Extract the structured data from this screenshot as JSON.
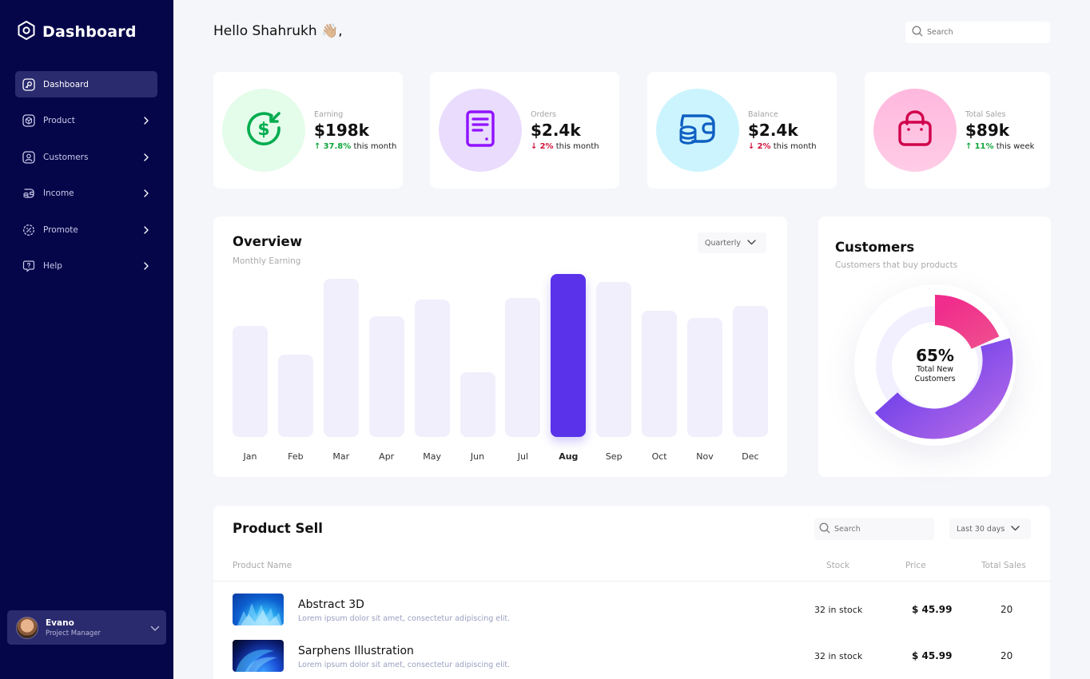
{
  "sidebar": {
    "brand": "Dashboard",
    "items": [
      {
        "label": "Dashboard",
        "icon": "key-icon",
        "active": true
      },
      {
        "label": "Product",
        "icon": "cube-icon"
      },
      {
        "label": "Customers",
        "icon": "user-square-icon"
      },
      {
        "label": "Income",
        "icon": "wallet-icon"
      },
      {
        "label": "Promote",
        "icon": "discount-icon"
      },
      {
        "label": "Help",
        "icon": "help-bubble-icon"
      }
    ],
    "user": {
      "name": "Evano",
      "role": "Project Manager"
    }
  },
  "header": {
    "greeting": "Hello Shahrukh 👋🏼,",
    "search_placeholder": "Search"
  },
  "stats": [
    {
      "label": "Earning",
      "value": "$198k",
      "change": "37.8%",
      "direction": "up",
      "period": "this month",
      "icon": "dollar-refresh-icon",
      "color": "#00AC4F"
    },
    {
      "label": "Orders",
      "value": "$2.4k",
      "change": "2%",
      "direction": "down",
      "period": "this month",
      "icon": "document-icon",
      "color": "#9012FF"
    },
    {
      "label": "Balance",
      "value": "$2.4k",
      "change": "2%",
      "direction": "down",
      "period": "this month",
      "icon": "wallet-coins-icon",
      "color": "#0F5FC2"
    },
    {
      "label": "Total Sales",
      "value": "$89k",
      "change": "11%",
      "direction": "up",
      "period": "this week",
      "icon": "shopping-bag-icon",
      "color": "#D0004B"
    }
  ],
  "overview": {
    "title": "Overview",
    "subtitle": "Monthly Earning",
    "dropdown": "Quarterly"
  },
  "chart_data": {
    "type": "bar",
    "categories": [
      "Jan",
      "Feb",
      "Mar",
      "Apr",
      "May",
      "Jun",
      "Jul",
      "Aug",
      "Sep",
      "Oct",
      "Nov",
      "Dec"
    ],
    "values": [
      70,
      52,
      100,
      76,
      87,
      41,
      88,
      103,
      98,
      80,
      75,
      83
    ],
    "highlight": "Aug",
    "title": "Overview",
    "subtitle": "Monthly Earning",
    "xlabel": "",
    "ylabel": "",
    "ylim": [
      0,
      105
    ],
    "grid": false,
    "colors": {
      "bar": "#F1EFFC",
      "highlight": "#5932EA"
    }
  },
  "customers": {
    "title": "Customers",
    "subtitle": "Customers that buy products",
    "percent": "65%",
    "label": "Total New Customers",
    "segments": [
      {
        "value": 65,
        "color": "#5932EA"
      },
      {
        "value": 15,
        "color": "#EF3A8E"
      },
      {
        "value": 20,
        "color": "#F2EFFF"
      }
    ]
  },
  "product_sell": {
    "title": "Product Sell",
    "search_placeholder": "Search",
    "dropdown": "Last 30 days",
    "columns": [
      "Product Name",
      "Stock",
      "Price",
      "Total Sales"
    ],
    "rows": [
      {
        "name": "Abstract 3D",
        "desc": "Lorem ipsum dolor sit amet, consectetur adipiscing elit.",
        "stock": "32 in stock",
        "price": "$ 45.99",
        "sales": "20"
      },
      {
        "name": "Sarphens Illustration",
        "desc": "Lorem ipsum dolor sit amet, consectetur adipiscing elit.",
        "stock": "32 in stock",
        "price": "$ 45.99",
        "sales": "20"
      }
    ]
  }
}
